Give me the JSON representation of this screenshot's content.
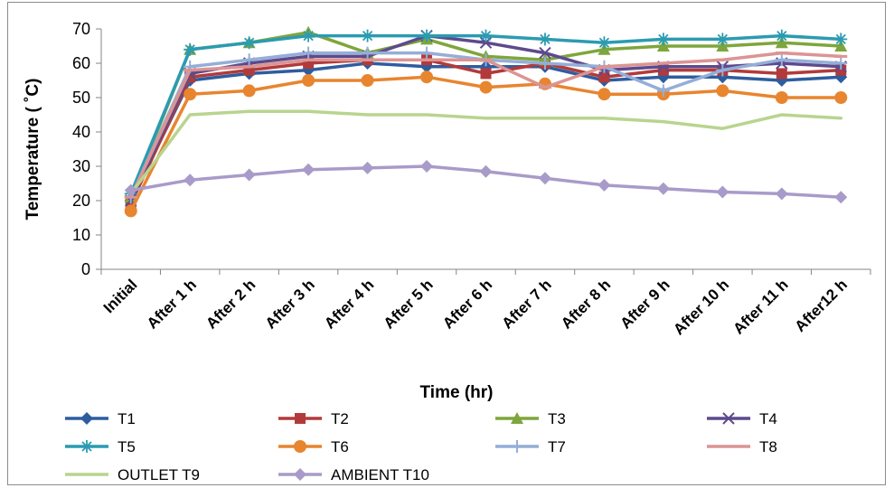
{
  "chart_data": {
    "type": "line",
    "title": "",
    "xlabel": "Time (hr)",
    "ylabel": "Temperature ( ˚C)",
    "ylim": [
      0,
      70
    ],
    "yticks": [
      0,
      10,
      20,
      30,
      40,
      50,
      60,
      70
    ],
    "grid": false,
    "legend": "bottom",
    "categories": [
      "Initial",
      "After 1 h",
      "After 2 h",
      "After 3 h",
      "After 4 h",
      "After 5 h",
      "After 6 h",
      "After 7 h",
      "After 8 h",
      "After 9 h",
      "After 10 h",
      "After 11 h",
      "After12 h"
    ],
    "series": [
      {
        "name": "T1",
        "color": "#2e5d9f",
        "marker": "diamond",
        "values": [
          20,
          55,
          57,
          58,
          60,
          59,
          59,
          59,
          55,
          56,
          56,
          55,
          56
        ]
      },
      {
        "name": "T2",
        "color": "#b33a3a",
        "marker": "square",
        "values": [
          19,
          56,
          58,
          60,
          61,
          61,
          57,
          60,
          56,
          58,
          58,
          57,
          58
        ]
      },
      {
        "name": "T3",
        "color": "#7ea63c",
        "marker": "triangle",
        "values": [
          21,
          64,
          66,
          69,
          63,
          67,
          62,
          61,
          64,
          65,
          65,
          66,
          65
        ]
      },
      {
        "name": "T4",
        "color": "#5d4a8c",
        "marker": "x",
        "values": [
          20,
          57,
          60,
          62,
          62,
          68,
          66,
          63,
          58,
          59,
          59,
          60,
          59
        ]
      },
      {
        "name": "T5",
        "color": "#2b9bb1",
        "marker": "star",
        "values": [
          22,
          64,
          66,
          68,
          68,
          68,
          68,
          67,
          66,
          67,
          67,
          68,
          67
        ]
      },
      {
        "name": "T6",
        "color": "#e8852f",
        "marker": "circle",
        "values": [
          17,
          51,
          52,
          55,
          55,
          56,
          53,
          54,
          51,
          51,
          52,
          50,
          50
        ]
      },
      {
        "name": "T7",
        "color": "#94aed8",
        "marker": "plus",
        "values": [
          21,
          59,
          61,
          63,
          63,
          63,
          61,
          60,
          59,
          52,
          58,
          61,
          60
        ]
      },
      {
        "name": "T8",
        "color": "#dc9493",
        "marker": "dash",
        "values": [
          21,
          58,
          59,
          61,
          61,
          61,
          61,
          53,
          59,
          60,
          61,
          63,
          62
        ]
      },
      {
        "name": "OUTLET T9",
        "color": "#b9d48f",
        "marker": "none",
        "values": [
          22,
          45,
          46,
          46,
          45,
          45,
          44,
          44,
          44,
          43,
          41,
          45,
          44
        ]
      },
      {
        "name": "AMBIENT T10",
        "color": "#a89bc9",
        "marker": "diamond",
        "values": [
          23,
          26,
          27.5,
          29,
          29.5,
          30,
          28.5,
          26.5,
          24.5,
          23.5,
          22.5,
          22,
          21
        ]
      }
    ]
  }
}
